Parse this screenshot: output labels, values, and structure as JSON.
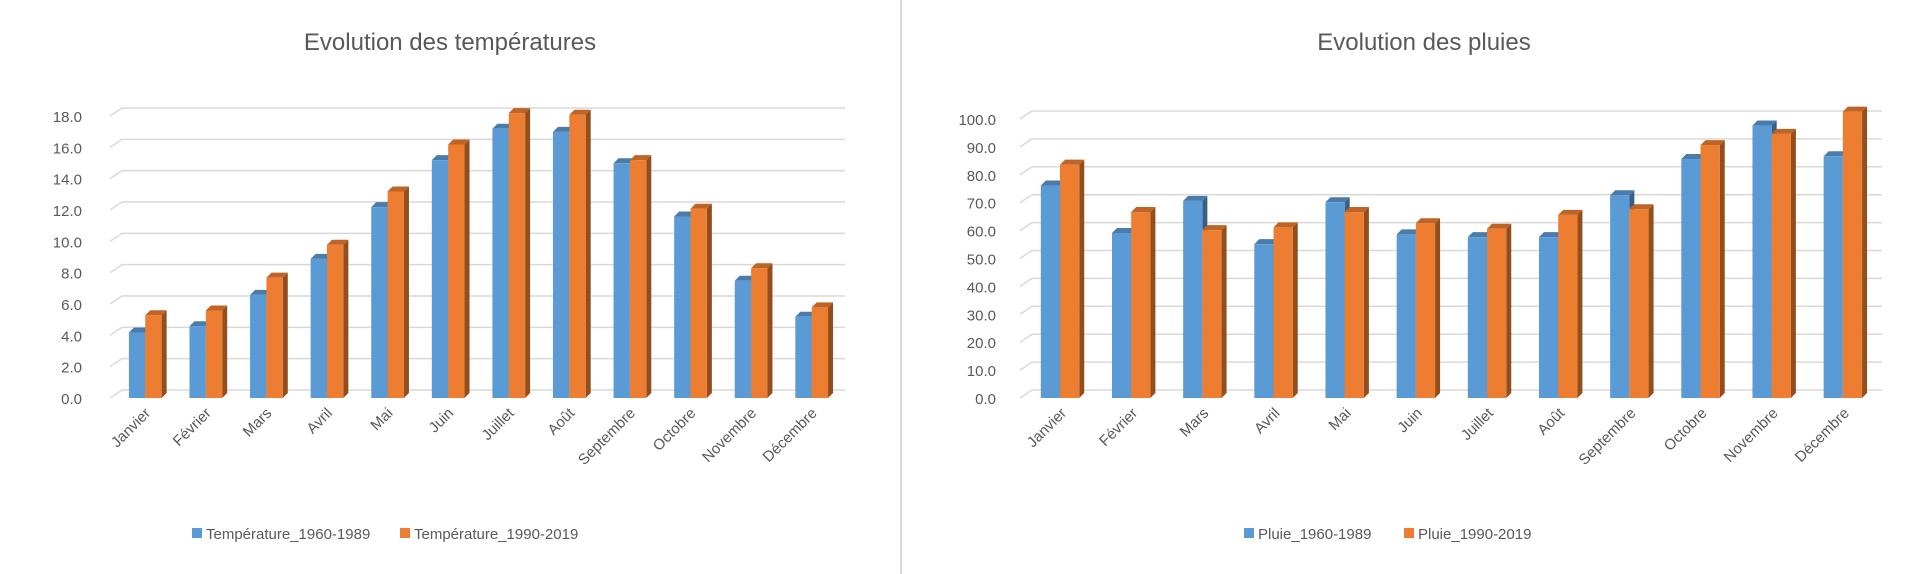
{
  "chart_data": [
    {
      "type": "bar",
      "title": "Evolution des températures",
      "categories": [
        "Janvier",
        "Février",
        "Mars",
        "Avril",
        "Mai",
        "Juin",
        "Juillet",
        "Août",
        "Septembre",
        "Octobre",
        "Novembre",
        "Décembre"
      ],
      "series": [
        {
          "name": "Température_1960-1989",
          "color": "#5b9bd5",
          "values": [
            3.8,
            4.2,
            6.2,
            8.5,
            11.8,
            14.8,
            16.8,
            16.6,
            14.6,
            11.2,
            7.1,
            4.8
          ]
        },
        {
          "name": "Température_1990-2019",
          "color": "#ed7d31",
          "values": [
            4.9,
            5.2,
            7.3,
            9.4,
            12.8,
            15.8,
            17.8,
            17.7,
            14.8,
            11.7,
            7.9,
            5.4
          ]
        }
      ],
      "ylim": [
        0,
        18
      ],
      "yticks": [
        "0.0",
        "2.0",
        "4.0",
        "6.0",
        "8.0",
        "10.0",
        "12.0",
        "14.0",
        "16.0",
        "18.0"
      ],
      "ystep": 2,
      "legend": "bottom",
      "grid": true
    },
    {
      "type": "bar",
      "title": "Evolution des pluies",
      "categories": [
        "Janvier",
        "Février",
        "Mars",
        "Avril",
        "Mai",
        "Juin",
        "Juillet",
        "Août",
        "Septembre",
        "Octobre",
        "Novembre",
        "Décembre"
      ],
      "series": [
        {
          "name": "Pluie_1960-1989",
          "color": "#5b9bd5",
          "values": [
            74,
            57,
            68.5,
            53,
            68,
            56.5,
            55.5,
            55.5,
            70.5,
            83.5,
            95.5,
            84.5
          ]
        },
        {
          "name": "Pluie_1990-2019",
          "color": "#ed7d31",
          "values": [
            81.5,
            64.5,
            58,
            59,
            64.5,
            60.5,
            58.5,
            63.5,
            65.5,
            88.5,
            92.5,
            100.5
          ]
        }
      ],
      "ylim": [
        0,
        100
      ],
      "yticks": [
        "0.0",
        "10.0",
        "20.0",
        "30.0",
        "40.0",
        "50.0",
        "60.0",
        "70.0",
        "80.0",
        "90.0",
        "100.0"
      ],
      "ystep": 10,
      "legend": "bottom",
      "grid": true
    }
  ]
}
